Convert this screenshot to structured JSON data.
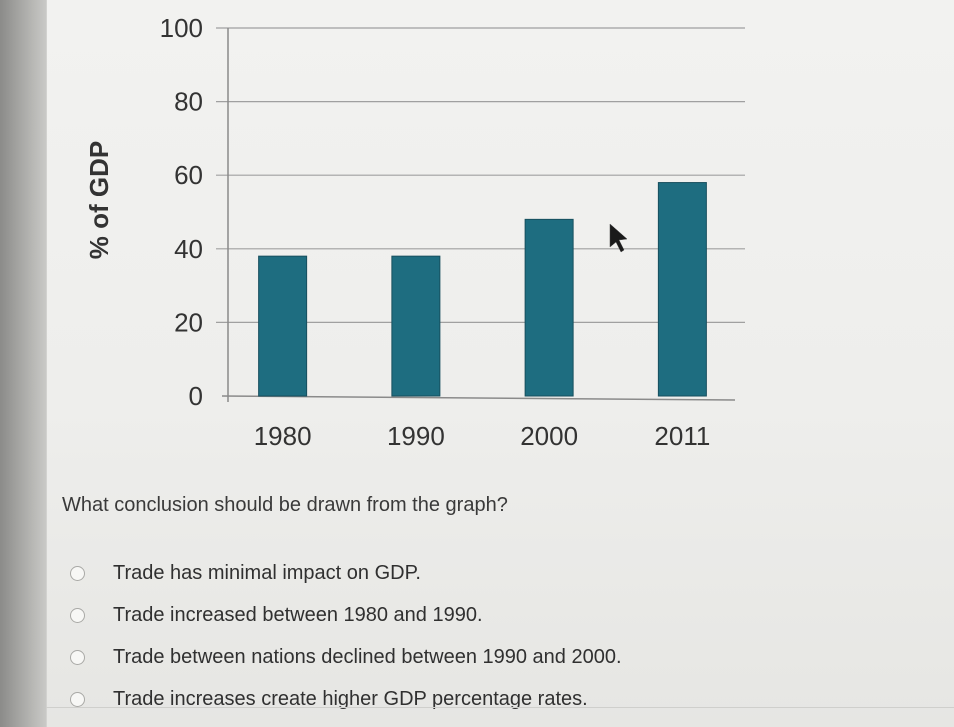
{
  "chart_data": {
    "type": "bar",
    "categories": [
      "1980",
      "1990",
      "2000",
      "2011"
    ],
    "values": [
      38,
      38,
      48,
      58
    ],
    "title": "",
    "xlabel": "",
    "ylabel": "% of GDP",
    "ylim": [
      0,
      100
    ],
    "yticks": [
      "0",
      "20",
      "40",
      "60",
      "80",
      "100"
    ],
    "grid": true,
    "bar_color": "#1e6d80"
  },
  "question": {
    "text": "What conclusion should be drawn from the graph?"
  },
  "choices": [
    "Trade has minimal impact on GDP.",
    "Trade increased between 1980 and 1990.",
    "Trade between nations declined between 1990 and 2000.",
    "Trade increases create higher GDP percentage rates."
  ],
  "colors": {
    "bar": "#1e6d80",
    "grid": "#a0a0a0",
    "text": "#333333"
  }
}
